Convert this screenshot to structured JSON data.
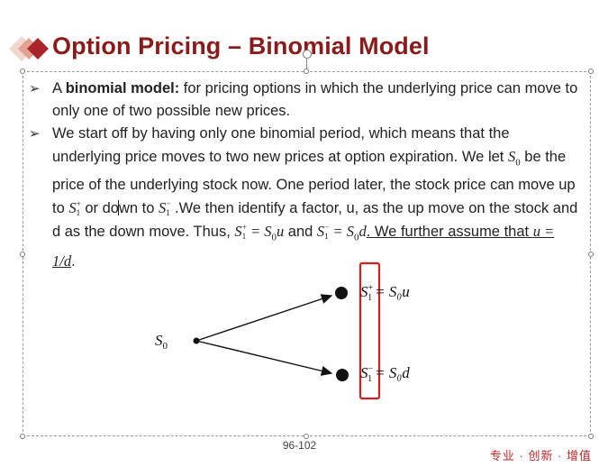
{
  "slide": {
    "title": "Option Pricing – Binomial Model",
    "page_number": "96-102",
    "brand_text": "专业 · 创新 · 增值",
    "colors": {
      "title": "#8b1a1a",
      "highlight_box": "#d62020",
      "brand": "#c62828"
    }
  },
  "bullet1": {
    "bold": "binomial model:",
    "pre": "A ",
    "text": " for pricing options in which the underlying price can move to only one of two possible new prices."
  },
  "bullet2": {
    "t1": "We start off by having only one binomial period, which means that the underlying price moves to two new prices at option expiration. We let ",
    "s0": "S",
    "s0_sub": "0",
    "t2": " be the price of the underlying stock now. One period later, the stock price can move up to ",
    "s1": "S",
    "s1_sub": "1",
    "plus": "+",
    "t3": " or do",
    "t3b": "wn to ",
    "minus": "−",
    "t4": " .We then identify a factor, u, as the up move on the stock and d as the down move. Thus, ",
    "eq_up_rhs": " = S",
    "u": "u",
    "t5": " and ",
    "eq_dn_rhs": " = S",
    "d": "d",
    "t6": ". ",
    "t7": "We further assume that ",
    "assume": "u = 1/d",
    "t8": "."
  },
  "diagram": {
    "start_label_main": "S",
    "start_label_sub": "0",
    "up_label": "= S₀u",
    "down_label": "= S₀d",
    "up_node": "S",
    "up_sub": "1",
    "up_sup": "+",
    "down_node": "S",
    "down_sub": "1",
    "down_sup": "−"
  }
}
